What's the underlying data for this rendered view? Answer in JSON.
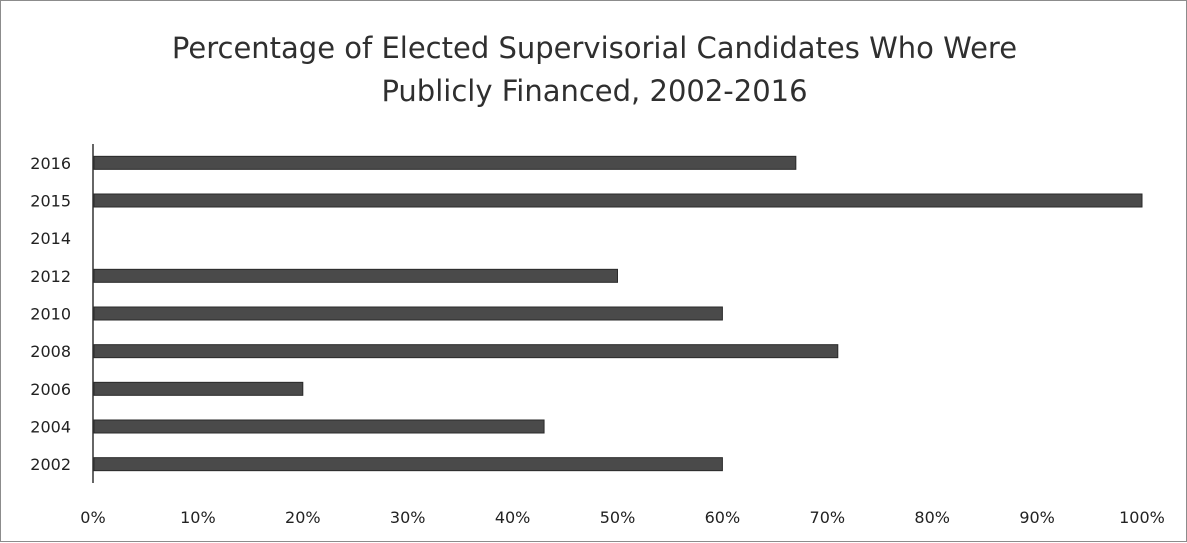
{
  "chart_data": {
    "type": "bar",
    "orientation": "horizontal",
    "title_lines": [
      "Percentage of Elected Supervisorial Candidates Who Were",
      "Publicly Financed, 2002-2016"
    ],
    "categories": [
      "2002",
      "2004",
      "2006",
      "2008",
      "2010",
      "2012",
      "2014",
      "2015",
      "2016"
    ],
    "values": [
      60,
      43,
      20,
      71,
      60,
      50,
      0,
      100,
      67
    ],
    "x_ticks": [
      "0%",
      "10%",
      "20%",
      "30%",
      "40%",
      "50%",
      "60%",
      "70%",
      "80%",
      "90%",
      "100%"
    ],
    "xlim": [
      0,
      100
    ],
    "xlabel": "",
    "ylabel": "",
    "grid": false,
    "legend": "none",
    "bar_color": "#4a4a4a"
  }
}
